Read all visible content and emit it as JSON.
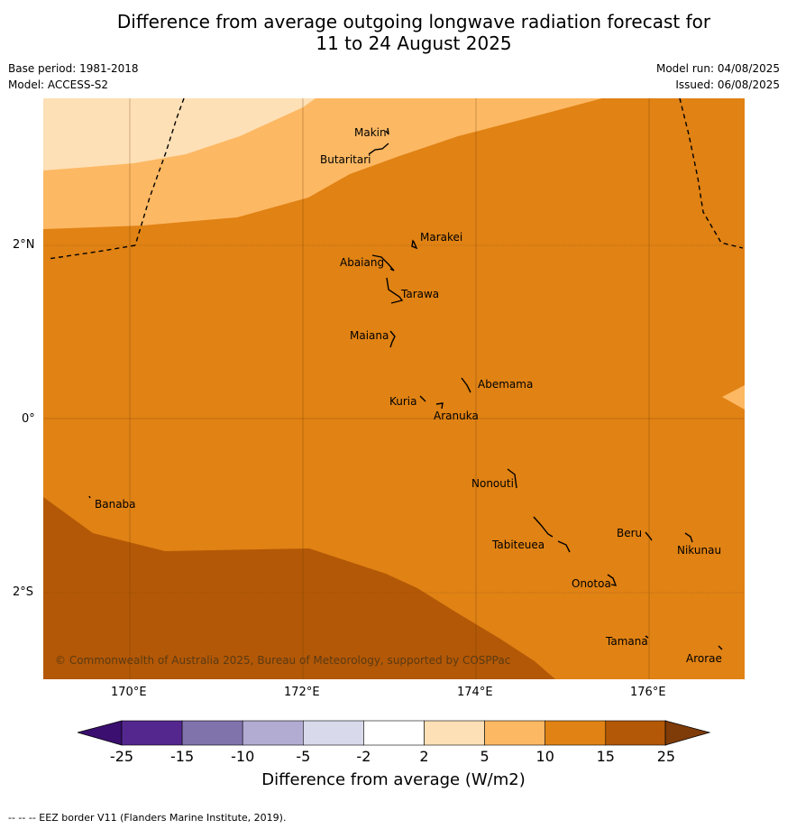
{
  "title_line1": "Difference from average outgoing longwave radiation forecast for",
  "title_line2": "11 to 24 August 2025",
  "base_period": "Base period: 1981-2018",
  "model": "Model: ACCESS-S2",
  "model_run": "Model run: 04/08/2025",
  "issued": "Issued: 06/08/2025",
  "copyright": "© Commonwealth of Australia 2025, Bureau of Meteorology, supported by COSPPac",
  "lon_ticks": [
    "170°E",
    "172°E",
    "174°E",
    "176°E"
  ],
  "lat_ticks": [
    "2°N",
    "0°",
    "2°S"
  ],
  "islands": {
    "makin": "Makin",
    "butaritari": "Butaritari",
    "marakei": "Marakei",
    "abaiang": "Abaiang",
    "tarawa": "Tarawa",
    "maiana": "Maiana",
    "abemama": "Abemama",
    "kuria": "Kuria",
    "aranuka": "Aranuka",
    "nonouti": "Nonouti",
    "banaba": "Banaba",
    "beru": "Beru",
    "nikunau": "Nikunau",
    "tabiteuea": "Tabiteuea",
    "onotoa": "Onotoa",
    "tamana": "Tamana",
    "arorae": "Arorae"
  },
  "colorbar": {
    "title": "Difference from average (W/m2)",
    "ticks": [
      "-25",
      "-15",
      "-10",
      "-5",
      "-2",
      "2",
      "5",
      "10",
      "15",
      "25"
    ],
    "colors": [
      "#3b0f6f",
      "#54278f",
      "#8073ac",
      "#b2abd2",
      "#d8daeb",
      "#ffffff",
      "#fee0b6",
      "#fdb863",
      "#e08214",
      "#b35806",
      "#7f3b08"
    ]
  },
  "footer": "--  --  -- EEZ border V11 (Flanders Marine Institute, 2019)."
}
